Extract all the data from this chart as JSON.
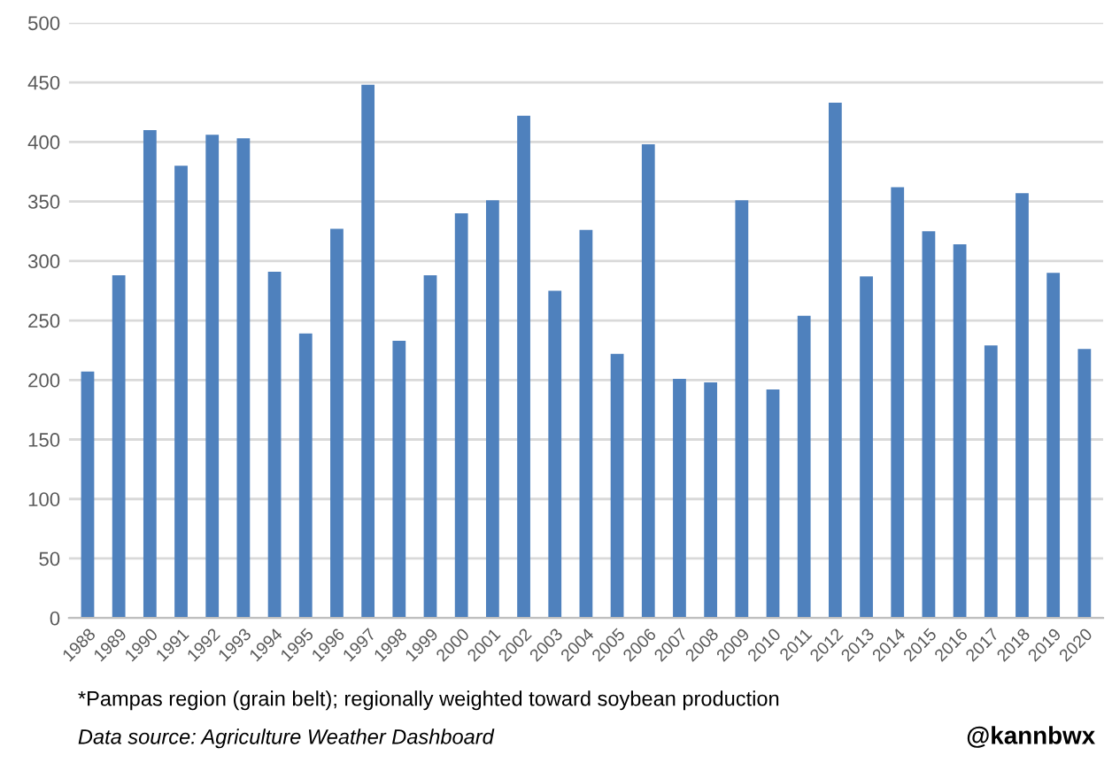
{
  "chart_data": {
    "type": "bar",
    "categories": [
      "1988",
      "1989",
      "1990",
      "1991",
      "1992",
      "1993",
      "1994",
      "1995",
      "1996",
      "1997",
      "1998",
      "1999",
      "2000",
      "2001",
      "2002",
      "2003",
      "2004",
      "2005",
      "2006",
      "2007",
      "2008",
      "2009",
      "2010",
      "2011",
      "2012",
      "2013",
      "2014",
      "2015",
      "2016",
      "2017",
      "2018",
      "2019",
      "2020"
    ],
    "values": [
      207,
      288,
      410,
      380,
      406,
      403,
      291,
      239,
      327,
      448,
      233,
      288,
      340,
      351,
      422,
      275,
      326,
      222,
      398,
      201,
      198,
      351,
      192,
      254,
      433,
      287,
      362,
      325,
      314,
      229,
      357,
      290,
      226
    ],
    "color": "#4f81bd",
    "ylim": [
      0,
      500
    ],
    "yticks": [
      0,
      50,
      100,
      150,
      200,
      250,
      300,
      350,
      400,
      450,
      500
    ],
    "grid": "y",
    "annotations": [
      "*Pampas region (grain belt); regionally weighted toward soybean production",
      "Data source: Agriculture Weather Dashboard",
      "@kannbwx"
    ]
  }
}
